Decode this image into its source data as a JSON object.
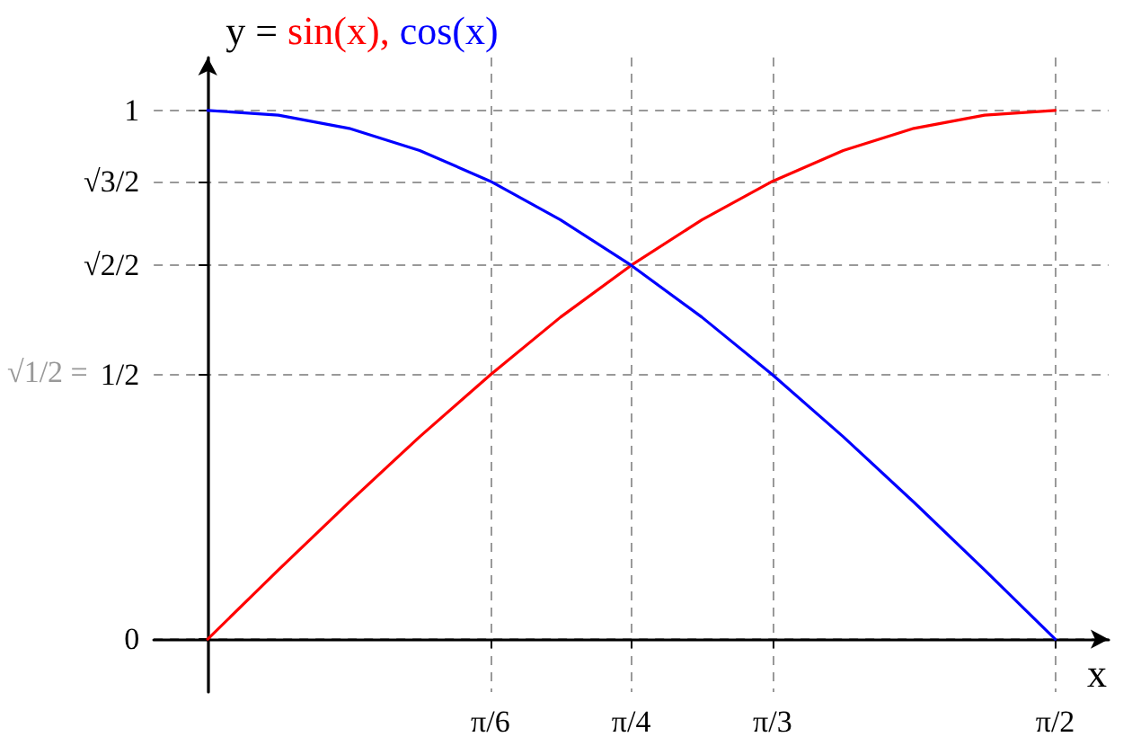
{
  "chart_data": {
    "type": "line",
    "ylabel": "y = sin(x), cos(x)",
    "xlabel": "x",
    "annotations": [
      "√1/2 ="
    ],
    "x": [
      0,
      0.131,
      0.262,
      0.393,
      0.524,
      0.654,
      0.785,
      0.916,
      1.047,
      1.178,
      1.309,
      1.44,
      1.571
    ],
    "series": [
      {
        "color": "#ff0000",
        "values": [
          0,
          0.131,
          0.259,
          0.383,
          0.5,
          0.609,
          0.707,
          0.793,
          0.866,
          0.924,
          0.966,
          0.991,
          1
        ]
      },
      {
        "color": "#0000ff",
        "values": [
          1,
          0.991,
          0.966,
          0.924,
          0.866,
          0.793,
          0.707,
          0.609,
          0.5,
          0.383,
          0.259,
          0.131,
          0
        ]
      }
    ],
    "xlim": [
      -0.1,
      1.67
    ],
    "ylim": [
      -0.1,
      1.1
    ],
    "xticks": [
      {
        "value": 0.524,
        "label": "π/6"
      },
      {
        "value": 0.785,
        "label": "π/4"
      },
      {
        "value": 1.047,
        "label": "π/3"
      },
      {
        "value": 1.571,
        "label": "π/2"
      }
    ],
    "yticks": [
      {
        "value": 0,
        "label": "0"
      },
      {
        "value": 0.5,
        "label": "1/2"
      },
      {
        "value": 0.707,
        "label": "√2/2"
      },
      {
        "value": 0.866,
        "label": "√3/2"
      },
      {
        "value": 1,
        "label": "1"
      }
    ],
    "grid": true,
    "marker": "none",
    "line_style": "solid"
  }
}
